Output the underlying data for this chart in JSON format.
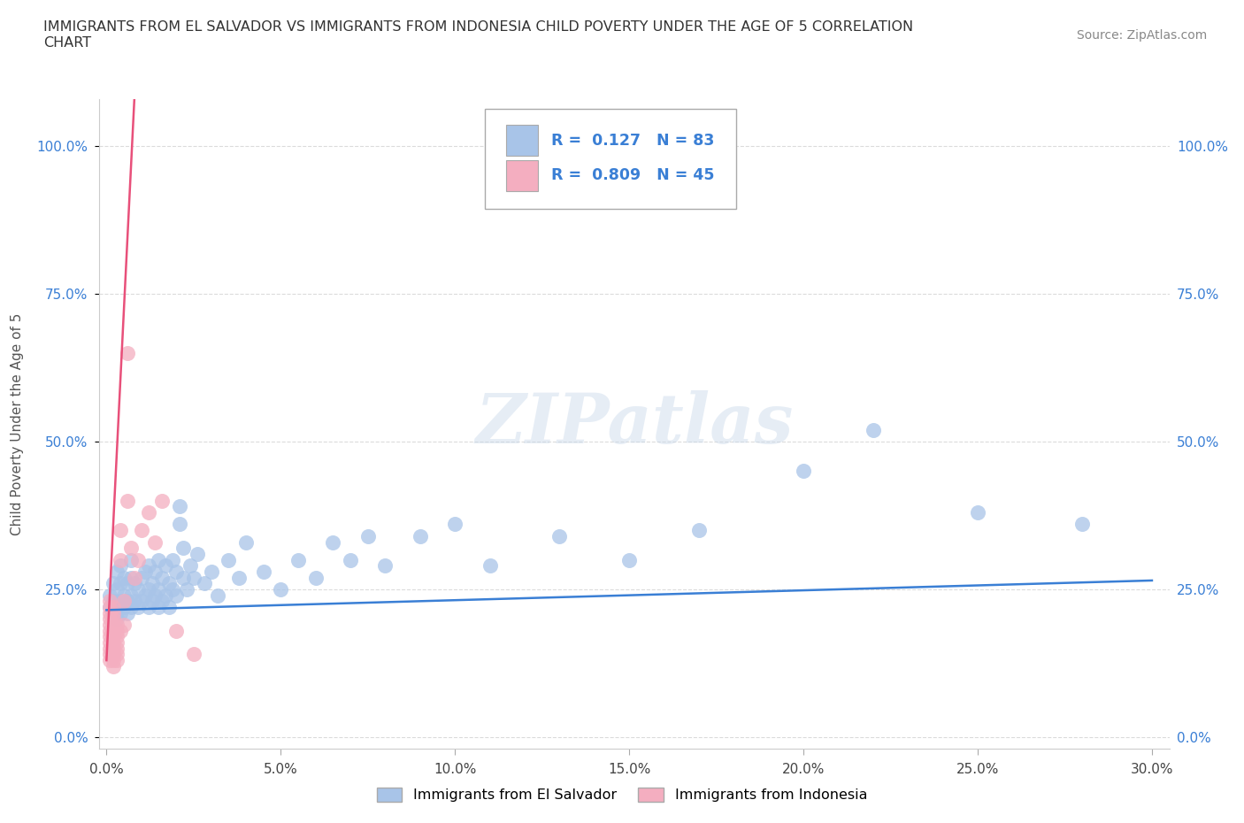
{
  "title": "IMMIGRANTS FROM EL SALVADOR VS IMMIGRANTS FROM INDONESIA CHILD POVERTY UNDER THE AGE OF 5 CORRELATION\nCHART",
  "source": "Source: ZipAtlas.com",
  "ylabel": "Child Poverty Under the Age of 5",
  "ytick_labels": [
    "0.0%",
    "25.0%",
    "50.0%",
    "75.0%",
    "100.0%"
  ],
  "ytick_values": [
    0.0,
    0.25,
    0.5,
    0.75,
    1.0
  ],
  "xtick_values": [
    0.0,
    0.05,
    0.1,
    0.15,
    0.2,
    0.25,
    0.3
  ],
  "xlim": [
    -0.002,
    0.305
  ],
  "ylim": [
    -0.02,
    1.08
  ],
  "blue_scatter_color": "#a8c4e8",
  "pink_scatter_color": "#f4aec0",
  "blue_line_color": "#3a7fd5",
  "pink_line_color": "#e8507a",
  "tick_color": "#3a7fd5",
  "R_blue": 0.127,
  "N_blue": 83,
  "R_pink": 0.809,
  "N_pink": 45,
  "legend_label_blue": "Immigrants from El Salvador",
  "legend_label_pink": "Immigrants from Indonesia",
  "watermark": "ZIPatlas",
  "grid_color": "#cccccc",
  "blue_scatter": [
    [
      0.001,
      0.22
    ],
    [
      0.001,
      0.24
    ],
    [
      0.002,
      0.21
    ],
    [
      0.002,
      0.23
    ],
    [
      0.002,
      0.26
    ],
    [
      0.003,
      0.2
    ],
    [
      0.003,
      0.22
    ],
    [
      0.003,
      0.25
    ],
    [
      0.003,
      0.28
    ],
    [
      0.004,
      0.21
    ],
    [
      0.004,
      0.23
    ],
    [
      0.004,
      0.26
    ],
    [
      0.004,
      0.29
    ],
    [
      0.005,
      0.22
    ],
    [
      0.005,
      0.24
    ],
    [
      0.005,
      0.27
    ],
    [
      0.006,
      0.21
    ],
    [
      0.006,
      0.23
    ],
    [
      0.006,
      0.26
    ],
    [
      0.007,
      0.22
    ],
    [
      0.007,
      0.24
    ],
    [
      0.007,
      0.27
    ],
    [
      0.007,
      0.3
    ],
    [
      0.008,
      0.23
    ],
    [
      0.008,
      0.26
    ],
    [
      0.009,
      0.22
    ],
    [
      0.009,
      0.25
    ],
    [
      0.01,
      0.23
    ],
    [
      0.01,
      0.27
    ],
    [
      0.011,
      0.24
    ],
    [
      0.011,
      0.28
    ],
    [
      0.012,
      0.22
    ],
    [
      0.012,
      0.25
    ],
    [
      0.012,
      0.29
    ],
    [
      0.013,
      0.23
    ],
    [
      0.013,
      0.26
    ],
    [
      0.014,
      0.24
    ],
    [
      0.014,
      0.28
    ],
    [
      0.015,
      0.22
    ],
    [
      0.015,
      0.25
    ],
    [
      0.015,
      0.3
    ],
    [
      0.016,
      0.23
    ],
    [
      0.016,
      0.27
    ],
    [
      0.017,
      0.24
    ],
    [
      0.017,
      0.29
    ],
    [
      0.018,
      0.22
    ],
    [
      0.018,
      0.26
    ],
    [
      0.019,
      0.25
    ],
    [
      0.019,
      0.3
    ],
    [
      0.02,
      0.24
    ],
    [
      0.02,
      0.28
    ],
    [
      0.021,
      0.36
    ],
    [
      0.021,
      0.39
    ],
    [
      0.022,
      0.27
    ],
    [
      0.022,
      0.32
    ],
    [
      0.023,
      0.25
    ],
    [
      0.024,
      0.29
    ],
    [
      0.025,
      0.27
    ],
    [
      0.026,
      0.31
    ],
    [
      0.028,
      0.26
    ],
    [
      0.03,
      0.28
    ],
    [
      0.032,
      0.24
    ],
    [
      0.035,
      0.3
    ],
    [
      0.038,
      0.27
    ],
    [
      0.04,
      0.33
    ],
    [
      0.045,
      0.28
    ],
    [
      0.05,
      0.25
    ],
    [
      0.055,
      0.3
    ],
    [
      0.06,
      0.27
    ],
    [
      0.065,
      0.33
    ],
    [
      0.07,
      0.3
    ],
    [
      0.075,
      0.34
    ],
    [
      0.08,
      0.29
    ],
    [
      0.09,
      0.34
    ],
    [
      0.1,
      0.36
    ],
    [
      0.11,
      0.29
    ],
    [
      0.13,
      0.34
    ],
    [
      0.15,
      0.3
    ],
    [
      0.17,
      0.35
    ],
    [
      0.2,
      0.45
    ],
    [
      0.22,
      0.52
    ],
    [
      0.25,
      0.38
    ],
    [
      0.28,
      0.36
    ]
  ],
  "pink_scatter": [
    [
      0.001,
      0.21
    ],
    [
      0.001,
      0.22
    ],
    [
      0.001,
      0.2
    ],
    [
      0.001,
      0.19
    ],
    [
      0.001,
      0.17
    ],
    [
      0.001,
      0.18
    ],
    [
      0.001,
      0.15
    ],
    [
      0.001,
      0.16
    ],
    [
      0.001,
      0.14
    ],
    [
      0.001,
      0.23
    ],
    [
      0.001,
      0.13
    ],
    [
      0.002,
      0.22
    ],
    [
      0.002,
      0.21
    ],
    [
      0.002,
      0.2
    ],
    [
      0.002,
      0.19
    ],
    [
      0.002,
      0.18
    ],
    [
      0.002,
      0.17
    ],
    [
      0.002,
      0.16
    ],
    [
      0.002,
      0.15
    ],
    [
      0.002,
      0.14
    ],
    [
      0.002,
      0.13
    ],
    [
      0.002,
      0.12
    ],
    [
      0.003,
      0.19
    ],
    [
      0.003,
      0.18
    ],
    [
      0.003,
      0.17
    ],
    [
      0.003,
      0.16
    ],
    [
      0.003,
      0.15
    ],
    [
      0.003,
      0.14
    ],
    [
      0.003,
      0.13
    ],
    [
      0.004,
      0.35
    ],
    [
      0.004,
      0.3
    ],
    [
      0.004,
      0.18
    ],
    [
      0.005,
      0.23
    ],
    [
      0.005,
      0.19
    ],
    [
      0.006,
      0.65
    ],
    [
      0.006,
      0.4
    ],
    [
      0.007,
      0.32
    ],
    [
      0.008,
      0.27
    ],
    [
      0.009,
      0.3
    ],
    [
      0.01,
      0.35
    ],
    [
      0.012,
      0.38
    ],
    [
      0.014,
      0.33
    ],
    [
      0.016,
      0.4
    ],
    [
      0.02,
      0.18
    ],
    [
      0.025,
      0.14
    ]
  ]
}
